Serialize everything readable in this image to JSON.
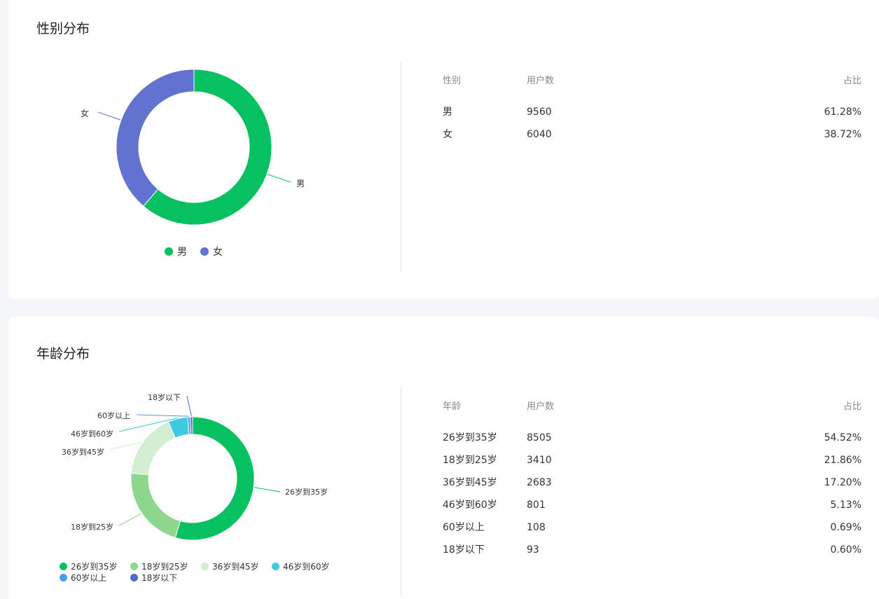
{
  "gender": {
    "title": "性别分布",
    "table_headers": [
      "性别",
      "用户数",
      "占比"
    ],
    "rows": [
      {
        "label": "男",
        "count": "9560",
        "pct": "61.28%"
      },
      {
        "label": "女",
        "count": "6040",
        "pct": "38.72%"
      }
    ],
    "legend": [
      "男",
      "女"
    ]
  },
  "age": {
    "title": "年龄分布",
    "table_headers": [
      "年龄",
      "用户数",
      "占比"
    ],
    "rows": [
      {
        "label": "26岁到35岁",
        "count": "8505",
        "pct": "54.52%"
      },
      {
        "label": "18岁到25岁",
        "count": "3410",
        "pct": "21.86%"
      },
      {
        "label": "36岁到45岁",
        "count": "2683",
        "pct": "17.20%"
      },
      {
        "label": "46岁到60岁",
        "count": "801",
        "pct": "5.13%"
      },
      {
        "label": "60岁以上",
        "count": "108",
        "pct": "0.69%"
      },
      {
        "label": "18岁以下",
        "count": "93",
        "pct": "0.60%"
      }
    ],
    "legend": [
      "26岁到35岁",
      "18岁到25岁",
      "36岁到45岁",
      "46岁到60岁",
      "60岁以上",
      "18岁以下"
    ]
  },
  "chart_data": [
    {
      "type": "pie",
      "title": "性别分布",
      "categories": [
        "男",
        "女"
      ],
      "values": [
        9560,
        6040
      ],
      "colors": [
        "#07c160",
        "#6272d0"
      ],
      "legend_position": "bottom"
    },
    {
      "type": "pie",
      "title": "年龄分布",
      "categories": [
        "26岁到35岁",
        "18岁到25岁",
        "36岁到45岁",
        "46岁到60岁",
        "60岁以上",
        "18岁以下"
      ],
      "values": [
        8505,
        3410,
        2683,
        801,
        108,
        93
      ],
      "colors": [
        "#07c160",
        "#8fd68f",
        "#d2efd2",
        "#3ecbe0",
        "#4a9ef0",
        "#5468c8"
      ],
      "legend_position": "bottom"
    }
  ]
}
